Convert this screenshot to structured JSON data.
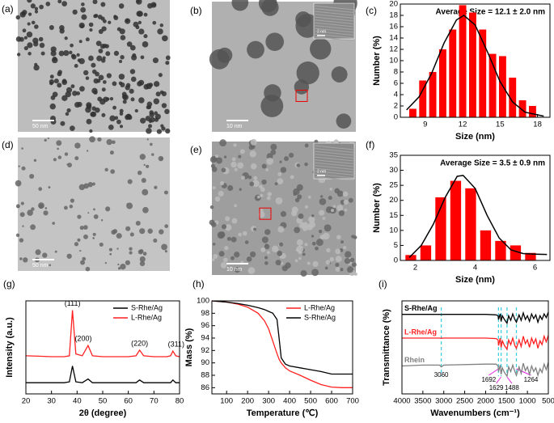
{
  "micrographs": [
    {
      "label": "(a)",
      "scale_bar": "50 nm"
    },
    {
      "label": "(b)",
      "scale_bar": "10 nm",
      "inset_scale_bar": "2 nm"
    },
    {
      "label": "(d)",
      "scale_bar": "50 nm"
    },
    {
      "label": "(e)",
      "scale_bar": "10 nm",
      "inset_scale_bar": "2 nm"
    }
  ],
  "chart_data": [
    {
      "type": "histogram",
      "panel_label": "(c)",
      "title": "Average Size = 12.1 ± 2.0 nm",
      "x_label": "Size (nm)",
      "y_label": "Number (%)",
      "bins": [
        7.6,
        8.4,
        9.2,
        10.0,
        10.8,
        11.6,
        12.4,
        13.2,
        14.0,
        14.8,
        15.6,
        16.4,
        17.2,
        18.0
      ],
      "counts": [
        1.5,
        6.5,
        8,
        12,
        15.5,
        19.8,
        18.5,
        15.5,
        11.2,
        10.8,
        7,
        3,
        2
      ],
      "color": "#ff0000",
      "fit": {
        "color": "#000000",
        "x": [
          7.5,
          8.5,
          9.5,
          10.5,
          11.5,
          12.1,
          13,
          14,
          15,
          16,
          17,
          18.5
        ],
        "values": [
          1.3,
          3.6,
          7.7,
          13.1,
          17.2,
          18,
          16.3,
          11.5,
          6.3,
          2.7,
          0.9,
          0.2
        ]
      },
      "xlim": [
        7,
        19
      ],
      "xticks": [
        9,
        12,
        15,
        18
      ],
      "ylim": [
        0,
        20
      ],
      "yticks": [
        0,
        2,
        4,
        6,
        8,
        10,
        12,
        14,
        16,
        18,
        20
      ]
    },
    {
      "type": "histogram",
      "panel_label": "(f)",
      "title": "Average Size = 3.5 ± 0.9 nm",
      "x_label": "Size (nm)",
      "y_label": "Number (%)",
      "bins": [
        1.6,
        2.1,
        2.6,
        3.1,
        3.6,
        4.1,
        4.6,
        5.1,
        5.6,
        6.1
      ],
      "counts": [
        1.8,
        5,
        21,
        26.5,
        24,
        10,
        6.5,
        5,
        2.5
      ],
      "color": "#ff0000",
      "fit": {
        "color": "#000000",
        "x": [
          1.8,
          2.2,
          2.6,
          3.0,
          3.4,
          3.6,
          4.0,
          4.4,
          4.8,
          5.2,
          5.6,
          6.0,
          6.4
        ],
        "values": [
          1,
          5,
          12,
          21,
          28,
          28.3,
          24,
          15,
          7.5,
          3.5,
          2.3,
          2.1,
          2
        ]
      },
      "xlim": [
        1.5,
        6.5
      ],
      "xticks": [
        2,
        4,
        6
      ],
      "ylim": [
        0,
        35
      ],
      "yticks": [
        0,
        5,
        10,
        15,
        20,
        25,
        30,
        35
      ]
    },
    {
      "type": "line",
      "panel_label": "(g)",
      "x_label": "2θ (degree)",
      "y_label": "Intensity (a.u.)",
      "x": [
        20,
        25,
        30,
        35,
        37,
        38.2,
        39.5,
        42,
        44.3,
        46,
        50,
        55,
        60,
        63,
        64.4,
        66,
        70,
        75,
        76.5,
        77.4,
        78.5,
        80
      ],
      "series": [
        {
          "name": "S-Rhe/Ag",
          "color": "#000000",
          "values": [
            12,
            12,
            12,
            12,
            13,
            30,
            13,
            12,
            16,
            12,
            12,
            12,
            12,
            12,
            15,
            12,
            12,
            12,
            12,
            15,
            12,
            12
          ]
        },
        {
          "name": "L-Rhe/Ag",
          "color": "#ff2020",
          "values": [
            41,
            40.5,
            40,
            40,
            41,
            90,
            43,
            41,
            52,
            41,
            40,
            40,
            40,
            41,
            47,
            41,
            40,
            40,
            41,
            46,
            41,
            40
          ]
        }
      ],
      "annotations": [
        "(111)",
        "(200)",
        "(220)",
        "(311)"
      ],
      "legend": "upper right",
      "xlim": [
        20,
        80
      ],
      "xticks": [
        20,
        30,
        40,
        50,
        60,
        70,
        80
      ],
      "ylim": [
        0,
        100
      ]
    },
    {
      "type": "line",
      "panel_label": "(h)",
      "x_label": "Temperature (℃)",
      "y_label": "Mass (%)",
      "x": [
        30,
        100,
        150,
        200,
        250,
        280,
        300,
        320,
        340,
        350,
        360,
        380,
        400,
        450,
        500,
        550,
        600,
        650,
        700
      ],
      "series": [
        {
          "name": "L-Rhe/Ag",
          "color": "#ff2020",
          "values": [
            100,
            99.8,
            99.5,
            99,
            98,
            96.8,
            95.5,
            93.5,
            91.5,
            90.6,
            90,
            89.2,
            88.7,
            88,
            87.2,
            86.5,
            86.1,
            86,
            86
          ]
        },
        {
          "name": "S-Rhe/Ag",
          "color": "#000000",
          "values": [
            100,
            99.8,
            99.6,
            99.3,
            98.9,
            98.6,
            98.3,
            98,
            97,
            94,
            90.8,
            89.8,
            89.5,
            89.2,
            88.9,
            88.6,
            88.2,
            88.2,
            88.2
          ]
        }
      ],
      "legend": "upper right",
      "xlim": [
        30,
        700
      ],
      "xticks": [
        100,
        200,
        300,
        400,
        500,
        600,
        700
      ],
      "ylim": [
        85,
        100
      ],
      "yticks": [
        86,
        88,
        90,
        92,
        94,
        96,
        98,
        100
      ]
    },
    {
      "type": "line",
      "panel_label": "(i)",
      "x_label": "Wavenumbers (cm⁻¹)",
      "y_label": "Transmittance (%)",
      "x": [
        4000,
        3500,
        3100,
        3060,
        3000,
        2000,
        1750,
        1700,
        1692,
        1650,
        1629,
        1600,
        1550,
        1488,
        1450,
        1400,
        1350,
        1300,
        1264,
        1200,
        1150,
        1100,
        1050,
        1000,
        950,
        900,
        850,
        800,
        750,
        700,
        650,
        600,
        550,
        500
      ],
      "series": [
        {
          "name": "S-Rhe/Ag",
          "color": "#000000",
          "values": [
            85.5,
            85.5,
            85.5,
            85.3,
            85.5,
            85.5,
            85,
            84,
            80,
            86,
            78,
            84,
            80,
            76,
            84,
            79,
            86,
            80,
            77,
            85,
            79,
            87,
            80,
            84,
            78,
            86,
            81,
            85,
            77,
            84,
            80,
            86,
            82,
            88
          ]
        },
        {
          "name": "L-Rhe/Ag",
          "color": "#ff2020",
          "values": [
            60,
            60,
            60,
            59.8,
            60,
            60,
            59.5,
            58,
            52,
            60,
            50,
            57,
            52,
            48,
            58,
            53,
            60,
            52,
            49,
            58,
            51,
            62,
            54,
            58,
            50,
            60,
            54,
            59,
            49,
            57,
            53,
            62,
            56,
            63
          ]
        },
        {
          "name": "Rhein",
          "color": "#808080",
          "values": [
            30,
            31,
            31,
            29,
            31,
            32,
            32,
            30,
            24,
            31,
            21,
            28,
            23,
            19,
            29,
            24,
            31,
            24,
            20,
            29,
            22,
            33,
            25,
            29,
            21,
            30,
            24,
            28,
            20,
            27,
            23,
            32,
            26,
            34
          ]
        }
      ],
      "markers": [
        3060,
        1692,
        1629,
        1488,
        1264
      ],
      "legend": "inline",
      "xlim": [
        4000,
        500
      ],
      "xticks": [
        4000,
        3500,
        3000,
        2500,
        2000,
        1500,
        1000,
        500
      ],
      "ylim": [
        0,
        100
      ]
    }
  ]
}
